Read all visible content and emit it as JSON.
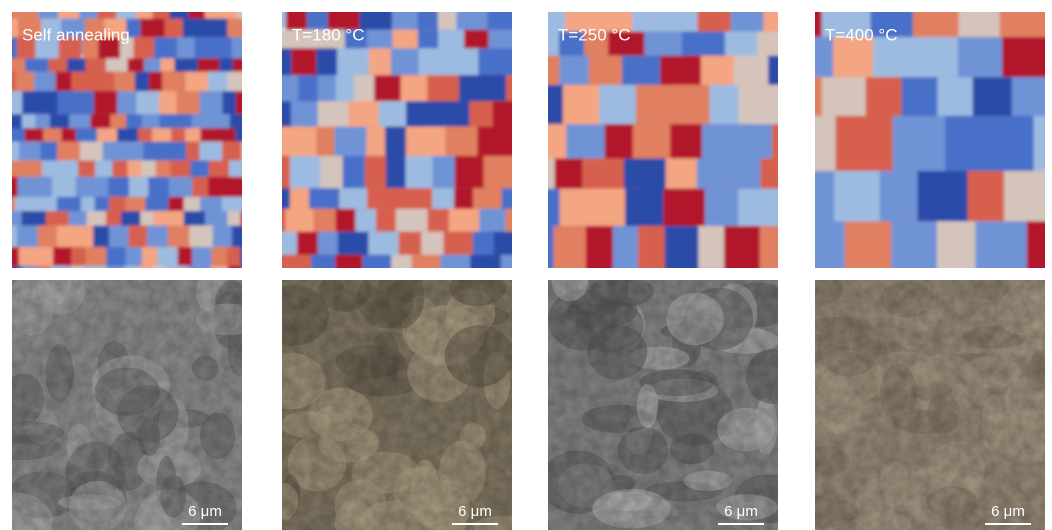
{
  "panels": [
    {
      "label": "Self annealing",
      "scale_bar": "6 μm"
    },
    {
      "label": "T=180 °C",
      "scale_bar": "6 μm"
    },
    {
      "label": "T=250 °C",
      "scale_bar": "6 μm"
    },
    {
      "label": "T=400 °C",
      "scale_bar": "6 μm"
    }
  ]
}
